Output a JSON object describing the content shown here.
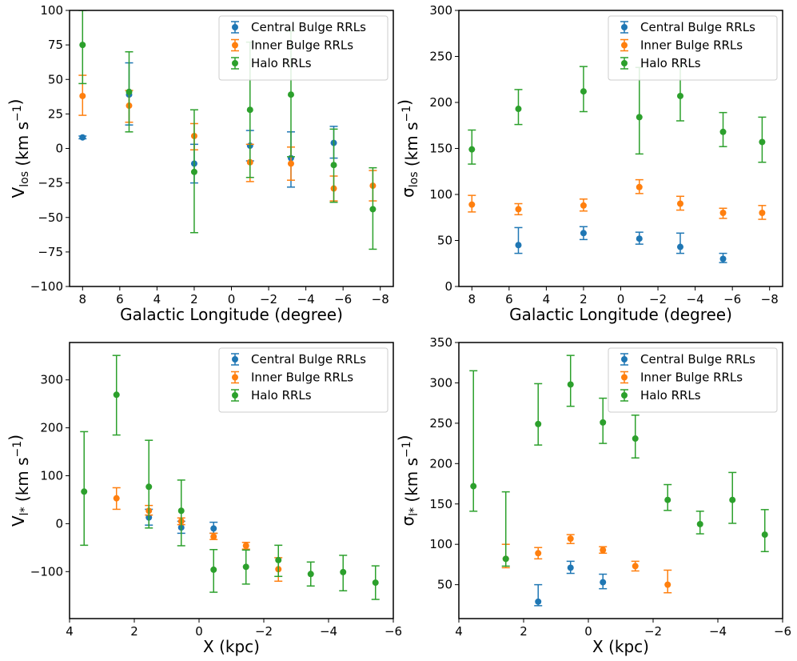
{
  "figure": {
    "title": ""
  },
  "colors": {
    "central": "#1f77b4",
    "inner": "#ff7f0e",
    "halo": "#2ca02c",
    "axes": "#000000",
    "legend_edge": "#cccccc"
  },
  "chart_data": [
    {
      "type": "scatter",
      "id": "vlos-vs-l",
      "xlabel": "Galactic Longitude (degree)",
      "ylabel": "V_los (km s^-1)",
      "xlim": [
        8.7,
        -8.7
      ],
      "ylim": [
        -100,
        100
      ],
      "xticks": [
        8,
        6,
        4,
        2,
        0,
        -2,
        -4,
        -6,
        -8
      ],
      "xtick_labels": [
        "8",
        "6",
        "4",
        "2",
        "0",
        "−2",
        "−4",
        "−6",
        "−8"
      ],
      "yticks": [
        -100,
        -75,
        -50,
        -25,
        0,
        25,
        50,
        75,
        100
      ],
      "ytick_labels": [
        "−100",
        "−75",
        "−50",
        "−25",
        "0",
        "25",
        "50",
        "75",
        "100"
      ],
      "legend": {
        "location": "upper right",
        "entries": [
          "Central Bulge RRLs",
          "Inner Bulge RRLs",
          "Halo RRLs"
        ]
      },
      "series": [
        {
          "name": "Central Bulge RRLs",
          "color_key": "central",
          "points": [
            {
              "x": 8.0,
              "y": 8,
              "lo": 7,
              "hi": 9
            },
            {
              "x": 5.5,
              "y": 39,
              "lo": 17,
              "hi": 62
            },
            {
              "x": 2.0,
              "y": -11,
              "lo": -25,
              "hi": 3
            },
            {
              "x": -1.0,
              "y": 2,
              "lo": -9,
              "hi": 13
            },
            {
              "x": -3.2,
              "y": -7,
              "lo": -28,
              "hi": 12
            },
            {
              "x": -5.5,
              "y": 4,
              "lo": -7,
              "hi": 16
            }
          ]
        },
        {
          "name": "Inner Bulge RRLs",
          "color_key": "inner",
          "points": [
            {
              "x": 8.0,
              "y": 38,
              "lo": 24,
              "hi": 53
            },
            {
              "x": 5.5,
              "y": 31,
              "lo": 19,
              "hi": 42
            },
            {
              "x": 2.0,
              "y": 9,
              "lo": -1,
              "hi": 18
            },
            {
              "x": -1.0,
              "y": -10,
              "lo": -24,
              "hi": 3
            },
            {
              "x": -3.2,
              "y": -11,
              "lo": -23,
              "hi": 1
            },
            {
              "x": -5.5,
              "y": -29,
              "lo": -38,
              "hi": -20
            },
            {
              "x": -7.6,
              "y": -27,
              "lo": -38,
              "hi": -16
            }
          ]
        },
        {
          "name": "Halo RRLs",
          "color_key": "halo",
          "points": [
            {
              "x": 8.0,
              "y": 75,
              "lo": 47,
              "hi": 100
            },
            {
              "x": 5.5,
              "y": 41,
              "lo": 12,
              "hi": 70
            },
            {
              "x": 2.0,
              "y": -17,
              "lo": -61,
              "hi": 28
            },
            {
              "x": -1.0,
              "y": 28,
              "lo": -21,
              "hi": 77
            },
            {
              "x": -3.2,
              "y": 39,
              "lo": -6,
              "hi": 85
            },
            {
              "x": -5.5,
              "y": -12,
              "lo": -39,
              "hi": 14
            },
            {
              "x": -7.6,
              "y": -44,
              "lo": -73,
              "hi": -14
            }
          ]
        }
      ]
    },
    {
      "type": "scatter",
      "id": "sigma-los-vs-l",
      "xlabel": "Galactic Longitude (degree)",
      "ylabel": "σ_los (km s^-1)",
      "xlim": [
        8.7,
        -8.7
      ],
      "ylim": [
        0,
        300
      ],
      "xticks": [
        8,
        6,
        4,
        2,
        0,
        -2,
        -4,
        -6,
        -8
      ],
      "xtick_labels": [
        "8",
        "6",
        "4",
        "2",
        "0",
        "−2",
        "−4",
        "−6",
        "−8"
      ],
      "yticks": [
        0,
        50,
        100,
        150,
        200,
        250,
        300
      ],
      "ytick_labels": [
        "0",
        "50",
        "100",
        "150",
        "200",
        "250",
        "300"
      ],
      "legend": {
        "location": "upper right",
        "entries": [
          "Central Bulge RRLs",
          "Inner Bulge RRLs",
          "Halo RRLs"
        ]
      },
      "series": [
        {
          "name": "Central Bulge RRLs",
          "color_key": "central",
          "points": [
            {
              "x": 5.5,
              "y": 45,
              "lo": 36,
              "hi": 64
            },
            {
              "x": 2.0,
              "y": 58,
              "lo": 51,
              "hi": 65
            },
            {
              "x": -1.0,
              "y": 52,
              "lo": 46,
              "hi": 59
            },
            {
              "x": -3.2,
              "y": 43,
              "lo": 36,
              "hi": 58
            },
            {
              "x": -5.5,
              "y": 30,
              "lo": 26,
              "hi": 36
            }
          ]
        },
        {
          "name": "Inner Bulge RRLs",
          "color_key": "inner",
          "points": [
            {
              "x": 8.0,
              "y": 89,
              "lo": 81,
              "hi": 99
            },
            {
              "x": 5.5,
              "y": 84,
              "lo": 78,
              "hi": 90
            },
            {
              "x": 2.0,
              "y": 88,
              "lo": 82,
              "hi": 95
            },
            {
              "x": -1.0,
              "y": 108,
              "lo": 101,
              "hi": 116
            },
            {
              "x": -3.2,
              "y": 90,
              "lo": 83,
              "hi": 98
            },
            {
              "x": -5.5,
              "y": 80,
              "lo": 74,
              "hi": 85
            },
            {
              "x": -7.6,
              "y": 80,
              "lo": 73,
              "hi": 88
            }
          ]
        },
        {
          "name": "Halo RRLs",
          "color_key": "halo",
          "points": [
            {
              "x": 8.0,
              "y": 149,
              "lo": 133,
              "hi": 170
            },
            {
              "x": 5.5,
              "y": 193,
              "lo": 176,
              "hi": 214
            },
            {
              "x": 2.0,
              "y": 212,
              "lo": 190,
              "hi": 239
            },
            {
              "x": -1.0,
              "y": 184,
              "lo": 144,
              "hi": 238
            },
            {
              "x": -3.2,
              "y": 207,
              "lo": 180,
              "hi": 240
            },
            {
              "x": -5.5,
              "y": 168,
              "lo": 152,
              "hi": 189
            },
            {
              "x": -7.6,
              "y": 157,
              "lo": 135,
              "hi": 184
            }
          ]
        }
      ]
    },
    {
      "type": "scatter",
      "id": "vl-vs-x",
      "xlabel": "X (kpc)",
      "ylabel": "V_l* (km s^-1)",
      "xlim": [
        4.0,
        -6.0
      ],
      "ylim": [
        -198,
        378
      ],
      "xticks": [
        4,
        2,
        0,
        -2,
        -4,
        -6
      ],
      "xtick_labels": [
        "4",
        "2",
        "0",
        "−2",
        "−4",
        "−6"
      ],
      "yticks": [
        -100,
        0,
        100,
        200,
        300
      ],
      "ytick_labels": [
        "−100",
        "0",
        "100",
        "200",
        "300"
      ],
      "legend": {
        "location": "upper right",
        "entries": [
          "Central Bulge RRLs",
          "Inner Bulge RRLs",
          "Halo RRLs"
        ]
      },
      "series": [
        {
          "name": "Central Bulge RRLs",
          "color_key": "central",
          "points": [
            {
              "x": 1.55,
              "y": 13,
              "lo": -3,
              "hi": 30
            },
            {
              "x": 0.55,
              "y": -8,
              "lo": -20,
              "hi": 5
            },
            {
              "x": -0.45,
              "y": -10,
              "lo": -20,
              "hi": 3
            }
          ]
        },
        {
          "name": "Inner Bulge RRLs",
          "color_key": "inner",
          "points": [
            {
              "x": 2.55,
              "y": 53,
              "lo": 30,
              "hi": 75
            },
            {
              "x": 1.55,
              "y": 27,
              "lo": 18,
              "hi": 38
            },
            {
              "x": 0.55,
              "y": 5,
              "lo": -2,
              "hi": 12
            },
            {
              "x": -0.45,
              "y": -27,
              "lo": -33,
              "hi": -20
            },
            {
              "x": -1.45,
              "y": -46,
              "lo": -53,
              "hi": -39
            },
            {
              "x": -2.45,
              "y": -95,
              "lo": -120,
              "hi": -71
            }
          ]
        },
        {
          "name": "Halo RRLs",
          "color_key": "halo",
          "points": [
            {
              "x": 3.55,
              "y": 67,
              "lo": -45,
              "hi": 192
            },
            {
              "x": 2.55,
              "y": 269,
              "lo": 185,
              "hi": 351
            },
            {
              "x": 1.55,
              "y": 77,
              "lo": -9,
              "hi": 174
            },
            {
              "x": 0.55,
              "y": 27,
              "lo": -46,
              "hi": 91
            },
            {
              "x": -0.45,
              "y": -96,
              "lo": -143,
              "hi": -54
            },
            {
              "x": -1.45,
              "y": -90,
              "lo": -126,
              "hi": -55
            },
            {
              "x": -2.45,
              "y": -76,
              "lo": -110,
              "hi": -45
            },
            {
              "x": -3.45,
              "y": -105,
              "lo": -130,
              "hi": -80
            },
            {
              "x": -4.45,
              "y": -101,
              "lo": -140,
              "hi": -66
            },
            {
              "x": -5.45,
              "y": -123,
              "lo": -158,
              "hi": -88
            }
          ]
        }
      ]
    },
    {
      "type": "scatter",
      "id": "sigma-l-vs-x",
      "xlabel": "X (kpc)",
      "ylabel": "σ_l* (km s^-1)",
      "xlim": [
        4.0,
        -6.0
      ],
      "ylim": [
        8,
        350
      ],
      "xticks": [
        4,
        2,
        0,
        -2,
        -4,
        -6
      ],
      "xtick_labels": [
        "4",
        "2",
        "0",
        "−2",
        "−4",
        "−6"
      ],
      "yticks": [
        50,
        100,
        150,
        200,
        250,
        300,
        350
      ],
      "ytick_labels": [
        "50",
        "100",
        "150",
        "200",
        "250",
        "300",
        "350"
      ],
      "legend": {
        "location": "upper right",
        "entries": [
          "Central Bulge RRLs",
          "Inner Bulge RRLs",
          "Halo RRLs"
        ]
      },
      "series": [
        {
          "name": "Central Bulge RRLs",
          "color_key": "central",
          "points": [
            {
              "x": 1.55,
              "y": 29,
              "lo": 24,
              "hi": 50
            },
            {
              "x": 0.55,
              "y": 71,
              "lo": 64,
              "hi": 79
            },
            {
              "x": -0.45,
              "y": 53,
              "lo": 45,
              "hi": 63
            }
          ]
        },
        {
          "name": "Inner Bulge RRLs",
          "color_key": "inner",
          "points": [
            {
              "x": 2.55,
              "y": 82,
              "lo": 71,
              "hi": 100
            },
            {
              "x": 1.55,
              "y": 89,
              "lo": 82,
              "hi": 96
            },
            {
              "x": 0.55,
              "y": 107,
              "lo": 101,
              "hi": 112
            },
            {
              "x": -0.45,
              "y": 93,
              "lo": 89,
              "hi": 97
            },
            {
              "x": -1.45,
              "y": 73,
              "lo": 67,
              "hi": 79
            },
            {
              "x": -2.45,
              "y": 50,
              "lo": 40,
              "hi": 68
            }
          ]
        },
        {
          "name": "Halo RRLs",
          "color_key": "halo",
          "points": [
            {
              "x": 3.55,
              "y": 172,
              "lo": 141,
              "hi": 315
            },
            {
              "x": 2.55,
              "y": 82,
              "lo": 73,
              "hi": 165
            },
            {
              "x": 1.55,
              "y": 249,
              "lo": 223,
              "hi": 299
            },
            {
              "x": 0.55,
              "y": 298,
              "lo": 271,
              "hi": 334
            },
            {
              "x": -0.45,
              "y": 251,
              "lo": 225,
              "hi": 281
            },
            {
              "x": -1.45,
              "y": 231,
              "lo": 207,
              "hi": 260
            },
            {
              "x": -2.45,
              "y": 155,
              "lo": 142,
              "hi": 174
            },
            {
              "x": -3.45,
              "y": 125,
              "lo": 113,
              "hi": 141
            },
            {
              "x": -4.45,
              "y": 155,
              "lo": 126,
              "hi": 189
            },
            {
              "x": -5.45,
              "y": 112,
              "lo": 91,
              "hi": 143
            }
          ]
        }
      ]
    }
  ]
}
